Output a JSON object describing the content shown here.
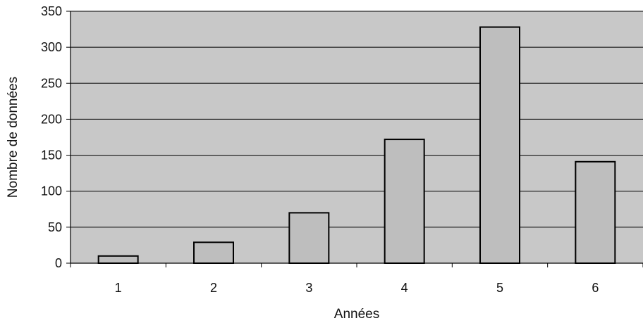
{
  "chart_data": {
    "type": "bar",
    "title": "",
    "xlabel": "Années",
    "ylabel": "Nombre de données",
    "categories": [
      "1",
      "2",
      "3",
      "4",
      "5",
      "6"
    ],
    "values": [
      10,
      29,
      70,
      172,
      328,
      141
    ],
    "ylim": [
      0,
      350
    ],
    "yticks": [
      "0",
      "50",
      "100",
      "150",
      "200",
      "250",
      "300",
      "350"
    ],
    "grid": true,
    "legend": "none",
    "colors": {
      "plot_background": "#c8c8c8",
      "bar_fill": "#bebebe",
      "bar_stroke": "#000000",
      "gridline": "#000000"
    }
  }
}
